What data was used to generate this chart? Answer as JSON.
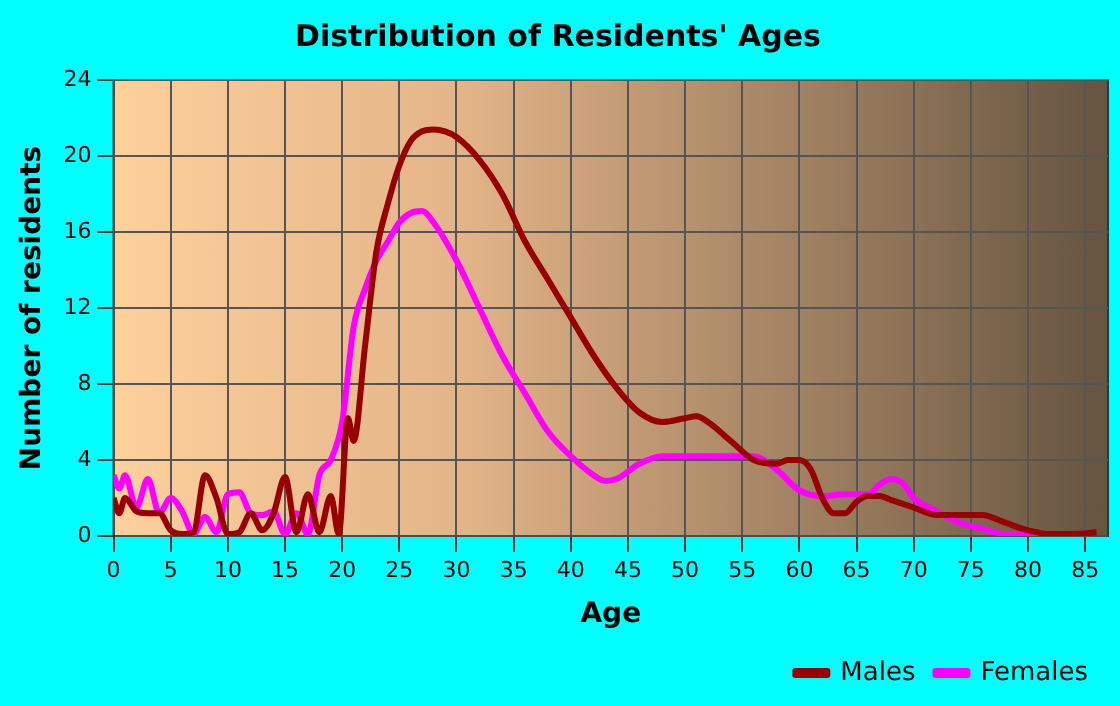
{
  "chart_data": {
    "type": "line",
    "title": "Distribution of Residents' Ages",
    "xlabel": "Age",
    "ylabel": "Number of residents",
    "xlim": [
      0,
      87
    ],
    "xticks": [
      0,
      5,
      10,
      15,
      20,
      25,
      30,
      35,
      40,
      45,
      50,
      55,
      60,
      65,
      70,
      75,
      80,
      85
    ],
    "ylim": [
      0,
      24
    ],
    "yticks": [
      0,
      4,
      8,
      12,
      16,
      20,
      24
    ],
    "grid": true,
    "legend": "bottom right",
    "marker": "none",
    "line_style": "solid",
    "series": [
      {
        "name": "Males",
        "color": "#990000",
        "x": [
          0,
          0.5,
          1,
          2,
          3,
          4,
          5,
          6,
          7,
          8,
          9,
          10,
          11,
          12,
          13,
          14,
          15,
          16,
          17,
          18,
          19,
          19.7,
          20.5,
          21,
          22,
          23,
          24,
          25,
          26,
          27,
          28,
          29,
          30,
          32,
          34,
          36,
          38,
          40,
          42,
          44,
          46,
          48,
          50,
          51,
          52,
          54,
          56,
          58,
          59,
          60,
          61,
          62,
          63,
          64,
          65,
          66,
          67,
          68,
          70,
          72,
          74,
          76,
          78,
          80,
          82,
          84,
          86
        ],
        "values": [
          2,
          1.2,
          2,
          1.3,
          1.2,
          1.2,
          0.3,
          0.1,
          0.2,
          3.2,
          2,
          0.1,
          0.2,
          1.2,
          0.3,
          1.2,
          3.1,
          0.2,
          2.2,
          0.2,
          2.1,
          0.1,
          6.2,
          5,
          10,
          15,
          17.5,
          19.5,
          20.8,
          21.3,
          21.4,
          21.3,
          21,
          19.8,
          18,
          15.5,
          13.5,
          11.5,
          9.5,
          7.8,
          6.5,
          6,
          6.2,
          6.3,
          6,
          5,
          4,
          3.8,
          4,
          4,
          3.5,
          2,
          1.2,
          1.2,
          1.8,
          2.1,
          2.1,
          1.9,
          1.5,
          1.1,
          1.1,
          1.1,
          0.7,
          0.3,
          0.1,
          0.1,
          0.2
        ]
      },
      {
        "name": "Females",
        "color": "#ff00ff",
        "x": [
          0,
          0.5,
          1,
          2,
          3,
          4,
          5,
          6,
          7,
          8,
          9,
          10,
          11,
          12,
          13,
          14,
          15,
          16,
          17,
          18,
          19,
          20,
          21,
          22,
          23,
          24,
          25,
          26,
          27,
          28,
          30,
          32,
          34,
          36,
          38,
          40,
          42,
          43,
          44,
          46,
          48,
          50,
          52,
          54,
          56,
          58,
          60,
          62,
          64,
          66,
          67,
          68,
          69,
          70,
          72,
          74,
          76,
          78,
          80,
          82
        ],
        "values": [
          3.2,
          2.5,
          3.2,
          1.5,
          3,
          1.2,
          2,
          1.3,
          0.1,
          1,
          0.2,
          2.2,
          2.3,
          1.2,
          1.1,
          1.3,
          0.1,
          1.2,
          0.1,
          3.2,
          4,
          6,
          11,
          13,
          14.5,
          15.5,
          16.5,
          17,
          17.1,
          16.5,
          14.5,
          12,
          9.5,
          7.5,
          5.5,
          4.2,
          3.2,
          2.9,
          3,
          3.8,
          4.2,
          4.2,
          4.2,
          4.2,
          4.2,
          3.5,
          2.4,
          2.1,
          2.2,
          2.2,
          2.7,
          3,
          2.8,
          2,
          1.3,
          0.7,
          0.4,
          0.1,
          0.1,
          0
        ]
      }
    ]
  }
}
